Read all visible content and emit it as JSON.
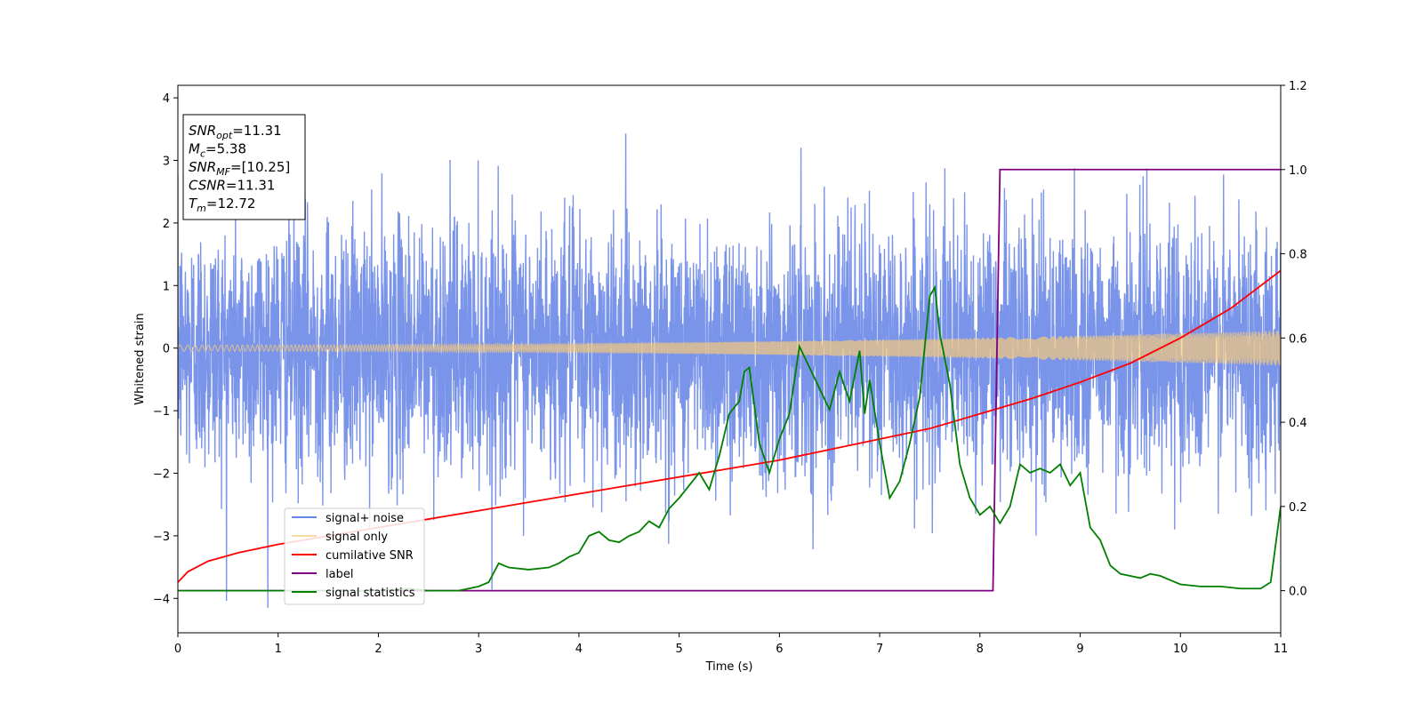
{
  "chart_data": {
    "type": "line",
    "xlabel": "Time (s)",
    "ylabel": "Whitened strain",
    "xlim": [
      0,
      11
    ],
    "ylim_left": [
      -4.55,
      4.2
    ],
    "ylim_right": [
      -0.1,
      1.2
    ],
    "x_ticks": [
      0,
      1,
      2,
      3,
      4,
      5,
      6,
      7,
      8,
      9,
      10,
      11
    ],
    "y_left_ticks": [
      -4,
      -3,
      -2,
      -1,
      0,
      1,
      2,
      3,
      4
    ],
    "y_right_ticks": [
      0.0,
      0.2,
      0.4,
      0.6,
      0.8,
      1.0,
      1.2
    ],
    "grid": false,
    "legend_position": "lower-left",
    "info_box": [
      {
        "base": "SNR",
        "sub": "opt",
        "rest": "=11.31"
      },
      {
        "base": "M",
        "sub": "c",
        "rest": "=5.38"
      },
      {
        "base": "SNR",
        "sub": "MF",
        "rest": "=[10.25]"
      },
      {
        "base": "CSNR",
        "sub": "",
        "rest": "=11.31"
      },
      {
        "base": "T",
        "sub": "m",
        "rest": "=12.72"
      }
    ],
    "series": [
      {
        "name": "signal+ noise",
        "axis": "left",
        "color": "#6685e6",
        "kind": "noise",
        "std": 1.0,
        "peak_range": [
          -4.15,
          3.78
        ]
      },
      {
        "name": "signal only",
        "axis": "left",
        "color": "#f5c97a",
        "kind": "chirp",
        "amplitude_start": 0.05,
        "amplitude_end": 0.28
      },
      {
        "name": "cumilative SNR",
        "axis": "right",
        "color": "#ff0000",
        "x": [
          0,
          0.1,
          0.3,
          0.6,
          1,
          1.5,
          2,
          2.5,
          3,
          3.5,
          4,
          4.5,
          5,
          5.5,
          6,
          6.5,
          7,
          7.5,
          8,
          8.5,
          9,
          9.5,
          10,
          10.5,
          11
        ],
        "values": [
          0.02,
          0.045,
          0.07,
          0.09,
          0.11,
          0.13,
          0.15,
          0.17,
          0.19,
          0.21,
          0.23,
          0.25,
          0.27,
          0.29,
          0.31,
          0.335,
          0.36,
          0.385,
          0.42,
          0.455,
          0.495,
          0.54,
          0.6,
          0.67,
          0.76
        ]
      },
      {
        "name": "label",
        "axis": "right",
        "color": "#800080",
        "x": [
          0,
          8.13,
          8.2,
          11
        ],
        "values": [
          0,
          0,
          1,
          1
        ]
      },
      {
        "name": "signal statistics",
        "axis": "right",
        "color": "#007f00",
        "x": [
          0,
          1.0,
          2.0,
          2.3,
          2.5,
          2.8,
          3.0,
          3.1,
          3.2,
          3.3,
          3.5,
          3.7,
          3.8,
          3.9,
          4.0,
          4.1,
          4.2,
          4.3,
          4.4,
          4.5,
          4.6,
          4.7,
          4.8,
          4.9,
          5.0,
          5.1,
          5.2,
          5.3,
          5.4,
          5.5,
          5.6,
          5.65,
          5.7,
          5.8,
          5.9,
          6.0,
          6.1,
          6.2,
          6.3,
          6.4,
          6.5,
          6.6,
          6.7,
          6.8,
          6.85,
          6.9,
          7.0,
          7.1,
          7.2,
          7.3,
          7.4,
          7.5,
          7.55,
          7.6,
          7.7,
          7.8,
          7.9,
          8.0,
          8.1,
          8.2,
          8.3,
          8.4,
          8.5,
          8.6,
          8.7,
          8.8,
          8.9,
          9.0,
          9.1,
          9.2,
          9.3,
          9.4,
          9.5,
          9.6,
          9.7,
          9.8,
          9.9,
          10.0,
          10.2,
          10.4,
          10.6,
          10.8,
          10.9,
          11.0
        ],
        "values": [
          0.0,
          0.0,
          0.0,
          0.005,
          0.0,
          0.0,
          0.01,
          0.02,
          0.065,
          0.055,
          0.05,
          0.055,
          0.065,
          0.08,
          0.09,
          0.13,
          0.14,
          0.12,
          0.115,
          0.13,
          0.14,
          0.165,
          0.15,
          0.195,
          0.22,
          0.25,
          0.28,
          0.24,
          0.32,
          0.42,
          0.45,
          0.52,
          0.53,
          0.35,
          0.28,
          0.36,
          0.42,
          0.58,
          0.53,
          0.48,
          0.43,
          0.52,
          0.45,
          0.57,
          0.42,
          0.5,
          0.35,
          0.22,
          0.26,
          0.35,
          0.46,
          0.7,
          0.72,
          0.61,
          0.49,
          0.3,
          0.22,
          0.18,
          0.2,
          0.16,
          0.2,
          0.3,
          0.28,
          0.29,
          0.28,
          0.3,
          0.25,
          0.28,
          0.15,
          0.12,
          0.06,
          0.04,
          0.035,
          0.03,
          0.04,
          0.035,
          0.025,
          0.015,
          0.01,
          0.01,
          0.005,
          0.005,
          0.02,
          0.2
        ]
      }
    ]
  }
}
